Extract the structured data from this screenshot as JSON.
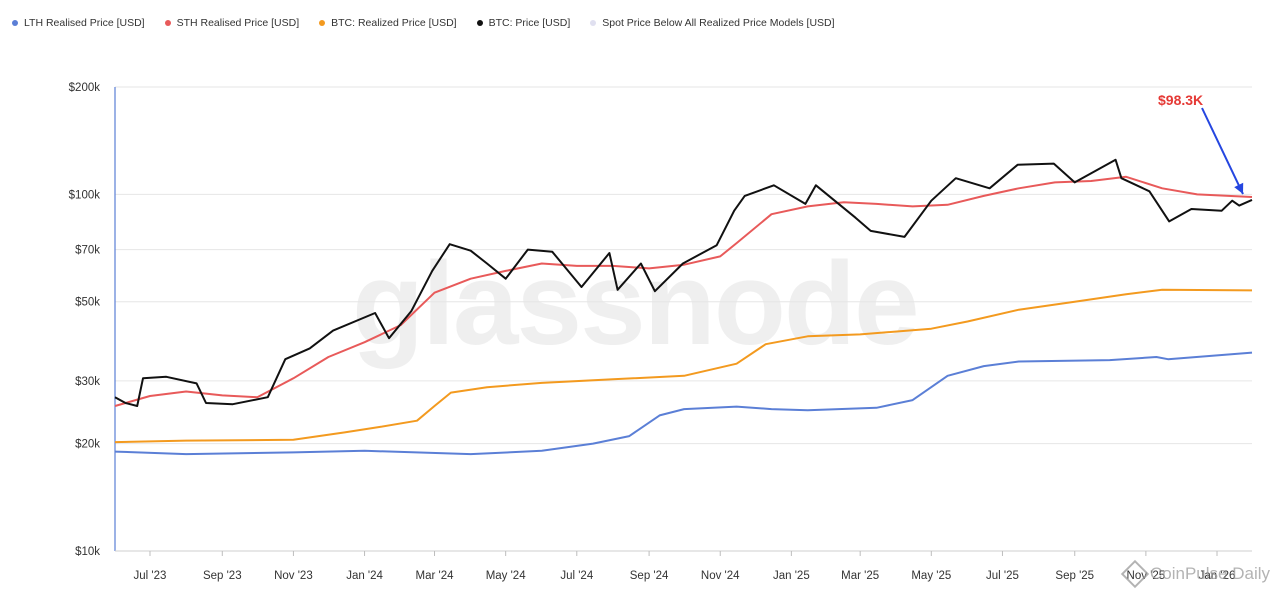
{
  "legend": {
    "items": [
      {
        "label": "LTH Realised Price [USD]",
        "color": "#5b7fd6"
      },
      {
        "label": "STH Realised Price [USD]",
        "color": "#e85a5a"
      },
      {
        "label": "BTC: Realized Price [USD]",
        "color": "#f39a1f"
      },
      {
        "label": "BTC: Price [USD]",
        "color": "#111111"
      },
      {
        "label": "Spot Price Below All Realized Price Models [USD]",
        "color": "#e0e0f0"
      }
    ]
  },
  "watermark": "glassnode",
  "credit": "CoinPulse Daily",
  "annotation": {
    "label": "$98.3K",
    "color": "#e53935",
    "arrow_color": "#2546e0"
  },
  "chart_data": {
    "type": "line",
    "y_scale": "log",
    "ylim": [
      10000,
      200000
    ],
    "y_ticks": [
      {
        "value": 10000,
        "label": "$10k"
      },
      {
        "value": 20000,
        "label": "$20k"
      },
      {
        "value": 30000,
        "label": "$30k"
      },
      {
        "value": 50000,
        "label": "$50k"
      },
      {
        "value": 70000,
        "label": "$70k"
      },
      {
        "value": 100000,
        "label": "$100k"
      },
      {
        "value": 200000,
        "label": "$200k"
      }
    ],
    "xlim": [
      "2023-06-01",
      "2026-01-31"
    ],
    "x_ticks": [
      {
        "date": "2023-07-01",
        "label": "Jul '23"
      },
      {
        "date": "2023-09-01",
        "label": "Sep '23"
      },
      {
        "date": "2023-11-01",
        "label": "Nov '23"
      },
      {
        "date": "2024-01-01",
        "label": "Jan '24"
      },
      {
        "date": "2024-03-01",
        "label": "Mar '24"
      },
      {
        "date": "2024-05-01",
        "label": "May '24"
      },
      {
        "date": "2024-07-01",
        "label": "Jul '24"
      },
      {
        "date": "2024-09-01",
        "label": "Sep '24"
      },
      {
        "date": "2024-11-01",
        "label": "Nov '24"
      },
      {
        "date": "2025-01-01",
        "label": "Jan '25"
      },
      {
        "date": "2025-03-01",
        "label": "Mar '25"
      },
      {
        "date": "2025-05-01",
        "label": "May '25"
      },
      {
        "date": "2025-07-01",
        "label": "Jul '25"
      },
      {
        "date": "2025-09-01",
        "label": "Sep '25"
      },
      {
        "date": "2025-11-01",
        "label": "Nov '25"
      },
      {
        "date": "2026-01-01",
        "label": "Jan '26"
      }
    ],
    "grid": true,
    "series": [
      {
        "name": "LTH Realised Price [USD]",
        "color": "#5b7fd6",
        "points": [
          [
            "2023-06-01",
            19000
          ],
          [
            "2023-08-01",
            18700
          ],
          [
            "2023-11-01",
            18900
          ],
          [
            "2024-01-01",
            19100
          ],
          [
            "2024-04-01",
            18700
          ],
          [
            "2024-06-01",
            19100
          ],
          [
            "2024-07-15",
            20000
          ],
          [
            "2024-08-15",
            21000
          ],
          [
            "2024-09-10",
            24000
          ],
          [
            "2024-10-01",
            25000
          ],
          [
            "2024-11-15",
            25400
          ],
          [
            "2024-12-15",
            25000
          ],
          [
            "2025-01-15",
            24800
          ],
          [
            "2025-03-15",
            25200
          ],
          [
            "2025-04-15",
            26500
          ],
          [
            "2025-05-15",
            31000
          ],
          [
            "2025-06-15",
            33000
          ],
          [
            "2025-07-15",
            34000
          ],
          [
            "2025-10-01",
            34300
          ],
          [
            "2025-11-10",
            35000
          ],
          [
            "2025-11-20",
            34500
          ],
          [
            "2026-01-31",
            36000
          ]
        ]
      },
      {
        "name": "BTC: Realized Price [USD]",
        "color": "#f39a1f",
        "points": [
          [
            "2023-06-01",
            20200
          ],
          [
            "2023-08-01",
            20400
          ],
          [
            "2023-11-01",
            20500
          ],
          [
            "2023-12-15",
            21500
          ],
          [
            "2024-01-15",
            22300
          ],
          [
            "2024-02-15",
            23200
          ],
          [
            "2024-03-01",
            25500
          ],
          [
            "2024-03-15",
            27800
          ],
          [
            "2024-04-15",
            28800
          ],
          [
            "2024-06-01",
            29600
          ],
          [
            "2024-08-01",
            30300
          ],
          [
            "2024-10-01",
            31000
          ],
          [
            "2024-11-15",
            33500
          ],
          [
            "2024-12-10",
            38000
          ],
          [
            "2025-01-15",
            40000
          ],
          [
            "2025-03-01",
            40500
          ],
          [
            "2025-05-01",
            42000
          ],
          [
            "2025-06-01",
            44000
          ],
          [
            "2025-07-15",
            47500
          ],
          [
            "2025-09-01",
            50000
          ],
          [
            "2025-10-15",
            52500
          ],
          [
            "2025-11-15",
            54000
          ],
          [
            "2026-01-31",
            53800
          ]
        ]
      },
      {
        "name": "STH Realised Price [USD]",
        "color": "#e85a5a",
        "points": [
          [
            "2023-06-01",
            25500
          ],
          [
            "2023-07-01",
            27200
          ],
          [
            "2023-08-01",
            28000
          ],
          [
            "2023-09-01",
            27300
          ],
          [
            "2023-10-01",
            27000
          ],
          [
            "2023-11-01",
            30500
          ],
          [
            "2023-12-01",
            35000
          ],
          [
            "2024-01-01",
            38500
          ],
          [
            "2024-02-01",
            43000
          ],
          [
            "2024-03-01",
            53000
          ],
          [
            "2024-04-01",
            58000
          ],
          [
            "2024-05-01",
            61000
          ],
          [
            "2024-06-01",
            64000
          ],
          [
            "2024-07-01",
            63000
          ],
          [
            "2024-08-01",
            63000
          ],
          [
            "2024-09-01",
            62000
          ],
          [
            "2024-10-01",
            63500
          ],
          [
            "2024-11-01",
            67000
          ],
          [
            "2024-11-15",
            73000
          ],
          [
            "2024-12-15",
            88000
          ],
          [
            "2025-01-15",
            92500
          ],
          [
            "2025-02-15",
            95000
          ],
          [
            "2025-03-15",
            94000
          ],
          [
            "2025-04-15",
            92500
          ],
          [
            "2025-05-15",
            93500
          ],
          [
            "2025-06-15",
            99000
          ],
          [
            "2025-07-15",
            104000
          ],
          [
            "2025-08-15",
            108000
          ],
          [
            "2025-09-15",
            109000
          ],
          [
            "2025-10-15",
            112000
          ],
          [
            "2025-11-15",
            104000
          ],
          [
            "2025-12-15",
            100000
          ],
          [
            "2026-01-31",
            98300
          ]
        ]
      },
      {
        "name": "BTC: Price [USD]",
        "color": "#111111",
        "points": [
          [
            "2023-06-01",
            27000
          ],
          [
            "2023-06-10",
            26000
          ],
          [
            "2023-06-20",
            25500
          ],
          [
            "2023-06-25",
            30500
          ],
          [
            "2023-07-15",
            30800
          ],
          [
            "2023-08-10",
            29500
          ],
          [
            "2023-08-18",
            26000
          ],
          [
            "2023-09-10",
            25800
          ],
          [
            "2023-10-10",
            27000
          ],
          [
            "2023-10-25",
            34500
          ],
          [
            "2023-11-15",
            37000
          ],
          [
            "2023-12-05",
            41500
          ],
          [
            "2024-01-10",
            46500
          ],
          [
            "2024-01-22",
            39500
          ],
          [
            "2024-02-10",
            47000
          ],
          [
            "2024-02-28",
            61000
          ],
          [
            "2024-03-14",
            72500
          ],
          [
            "2024-04-01",
            69500
          ],
          [
            "2024-04-15",
            64000
          ],
          [
            "2024-05-01",
            58000
          ],
          [
            "2024-05-20",
            70000
          ],
          [
            "2024-06-10",
            69000
          ],
          [
            "2024-07-05",
            55000
          ],
          [
            "2024-07-29",
            68500
          ],
          [
            "2024-08-05",
            54000
          ],
          [
            "2024-08-25",
            64000
          ],
          [
            "2024-09-06",
            53500
          ],
          [
            "2024-09-30",
            64000
          ],
          [
            "2024-10-29",
            72000
          ],
          [
            "2024-11-13",
            90000
          ],
          [
            "2024-11-22",
            99000
          ],
          [
            "2024-12-17",
            106000
          ],
          [
            "2025-01-13",
            94000
          ],
          [
            "2025-01-22",
            106000
          ],
          [
            "2025-02-25",
            86000
          ],
          [
            "2025-03-10",
            79000
          ],
          [
            "2025-04-08",
            76000
          ],
          [
            "2025-05-01",
            96000
          ],
          [
            "2025-05-22",
            111000
          ],
          [
            "2025-06-20",
            104000
          ],
          [
            "2025-07-14",
            121000
          ],
          [
            "2025-08-14",
            122000
          ],
          [
            "2025-09-01",
            108000
          ],
          [
            "2025-10-06",
            125000
          ],
          [
            "2025-10-11",
            111000
          ],
          [
            "2025-11-04",
            102000
          ],
          [
            "2025-11-21",
            84000
          ],
          [
            "2025-12-10",
            91000
          ],
          [
            "2026-01-05",
            90000
          ],
          [
            "2026-01-14",
            96000
          ],
          [
            "2026-01-20",
            93000
          ],
          [
            "2026-01-31",
            96500
          ]
        ]
      }
    ]
  }
}
